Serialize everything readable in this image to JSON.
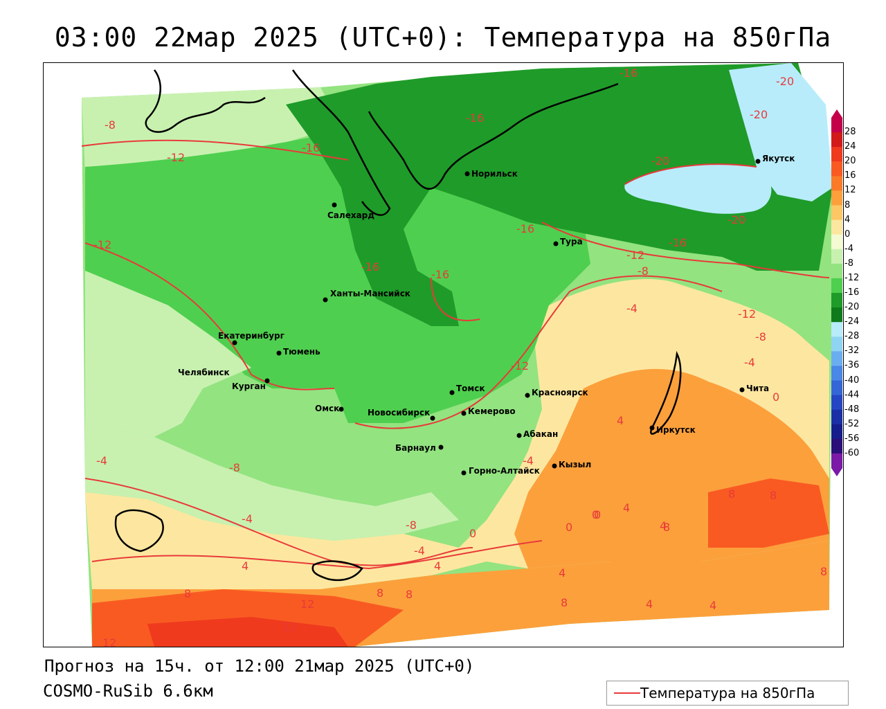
{
  "title": "03:00 22мар 2025 (UTC+0): Температура на 850гПа",
  "forecast_text": "Прогноз на 15ч. от 12:00 21мар 2025 (UTC+0)",
  "model_text": "COSMO-RuSib 6.6км",
  "legend": {
    "label": "Температура на 850гПа",
    "color": "#e83a3a"
  },
  "colorbar": {
    "labels": [
      "28",
      "24",
      "20",
      "16",
      "12",
      "8",
      "4",
      "0",
      "-4",
      "-8",
      "-12",
      "-16",
      "-20",
      "-24",
      "-28",
      "-32",
      "-36",
      "-40",
      "-44",
      "-48",
      "-52",
      "-56",
      "-60"
    ],
    "colors": [
      "#c4004a",
      "#d21a1a",
      "#ef3a1e",
      "#f95a22",
      "#fb7a28",
      "#fca03c",
      "#fdc765",
      "#fde7a0",
      "#f4fbd3",
      "#c8f1b0",
      "#93e380",
      "#4fcf4f",
      "#1f9b29",
      "#0e7a1c",
      "#b8ecfb",
      "#8fd5f3",
      "#6aaef0",
      "#4a87e6",
      "#3466d6",
      "#2446c4",
      "#1a2ea5",
      "#151c8c",
      "#2a1078",
      "#7a1aa6"
    ]
  },
  "cities": [
    {
      "name": "Салехард",
      "icon": "city-dot-icon"
    },
    {
      "name": "Норильск",
      "icon": "city-dot-icon"
    },
    {
      "name": "Тура",
      "icon": "city-dot-icon"
    },
    {
      "name": "Якутск",
      "icon": "city-dot-icon"
    },
    {
      "name": "Ханты-Мансийск",
      "icon": "city-dot-icon"
    },
    {
      "name": "Екатеринбург",
      "icon": "city-dot-icon"
    },
    {
      "name": "Тюмень",
      "icon": "city-dot-icon"
    },
    {
      "name": "Челябинск",
      "icon": "city-dot-icon"
    },
    {
      "name": "Курган",
      "icon": "city-dot-icon"
    },
    {
      "name": "Омск",
      "icon": "city-dot-icon"
    },
    {
      "name": "Новосибирск",
      "icon": "city-dot-icon"
    },
    {
      "name": "Томск",
      "icon": "city-dot-icon"
    },
    {
      "name": "Кемерово",
      "icon": "city-dot-icon"
    },
    {
      "name": "Красноярск",
      "icon": "city-dot-icon"
    },
    {
      "name": "Абакан",
      "icon": "city-dot-icon"
    },
    {
      "name": "Барнаул",
      "icon": "city-dot-icon"
    },
    {
      "name": "Горно-Алтайск",
      "icon": "city-dot-icon"
    },
    {
      "name": "Кызыл",
      "icon": "city-dot-icon"
    },
    {
      "name": "Иркутск",
      "icon": "city-dot-icon"
    },
    {
      "name": "Чита",
      "icon": "city-dot-icon"
    }
  ],
  "contour_labels": [
    "-16",
    "-20",
    "-16",
    "-20",
    "-20",
    "-20",
    "-16",
    "-8",
    "-12",
    "-16",
    "-16",
    "-16",
    "-16",
    "-12",
    "-12",
    "-8",
    "-4",
    "-12",
    "-8",
    "-4",
    "-4",
    "0",
    "-4",
    "-8",
    "-12",
    "-4",
    "-8",
    "-4",
    "0",
    "0",
    "0",
    "4",
    "4",
    "4",
    "4",
    "4",
    "4",
    "8",
    "8",
    "8",
    "8",
    "8",
    "8",
    "12",
    "12",
    "12",
    "4",
    "8",
    "0",
    "4",
    "8"
  ]
}
